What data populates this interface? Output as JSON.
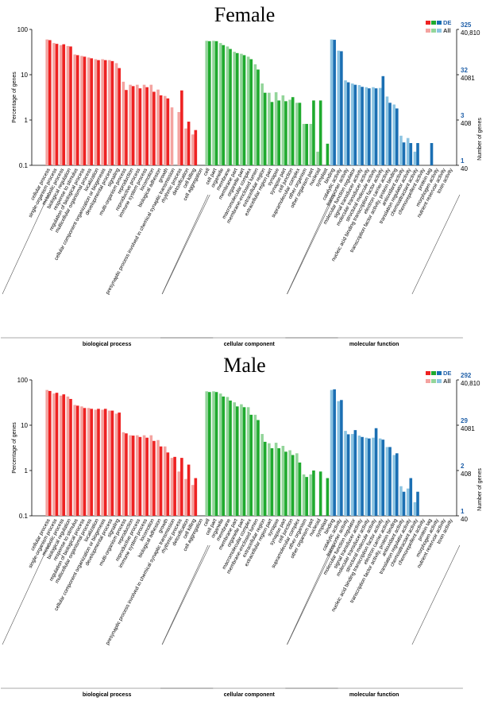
{
  "colors": {
    "bp_de": "#ee2222",
    "bp_all": "#f4a3a0",
    "cc_de": "#1faa2e",
    "cc_all": "#93d59a",
    "mf_de": "#1b6fb3",
    "mf_all": "#8cc4e2",
    "legend_de_text": "#1f5fa8"
  },
  "legend": {
    "de_label": "DE",
    "all_label": "All"
  },
  "categories": [
    "cellular process",
    "single-organism process",
    "metabolic process",
    "biological regulation",
    "response to stimulus",
    "regulation of biological process",
    "multicellular organismal process",
    "localization",
    "cellular component organization or biogenesis",
    "developmental process",
    "signaling",
    "multi-organism process",
    "reproduction",
    "reproductive process",
    "immune system process",
    "locomotion",
    "biological adhesion",
    "growth",
    "presynaptic process involved in chemical synaptic transmission",
    "rhythmic process",
    "detoxification",
    "cell killing",
    "cell aggregation",
    "cell",
    "cell part",
    "organelle",
    "membrane",
    "membrane part",
    "organelle part",
    "macromolecular complex",
    "membrane-enclosed lumen",
    "extracellular region",
    "extracellular region part",
    "synapse",
    "synapse part",
    "cell junction",
    "supramolecular complex",
    "other organism",
    "other organism part",
    "nucleoid",
    "symplast",
    "binding",
    "catalytic activity",
    "transporter activity",
    "molecular function regulator",
    "signal transducer activity",
    "molecular transducer activity",
    "structural molecule activity",
    "nucleic acid binding transcription factor activity",
    "electron carrier activity",
    "transcription factor activity, protein binding",
    "antioxidant activity",
    "translation regulator activity",
    "chemoattractant activity",
    "chemorepellent activity",
    "protein tag",
    "morphogen activity",
    "nutrient reservoir activity",
    "toxin activity"
  ],
  "groups": [
    {
      "name": "biological process",
      "start": 0,
      "count": 23
    },
    {
      "name": "cellular component",
      "start": 23,
      "count": 18
    },
    {
      "name": "molecular function",
      "start": 41,
      "count": 18
    }
  ],
  "chart_data": [
    {
      "type": "bar",
      "title": "Female",
      "ylabel": "Percentage of genes",
      "y2label": "Number of genes",
      "yscale": "log",
      "ylim": [
        0.1,
        100
      ],
      "yticks": [
        "100",
        "10",
        "1",
        "0.1"
      ],
      "right_ticks": [
        {
          "de": "325",
          "all": "40,810"
        },
        {
          "de": "32",
          "all": "4081"
        },
        {
          "de": "3",
          "all": "408"
        },
        {
          "de": "1",
          "all": "40"
        }
      ],
      "series": [
        {
          "name": "DE",
          "values": [
            58,
            48,
            47,
            42,
            27,
            25,
            23,
            21,
            21,
            20,
            14,
            4.6,
            5.6,
            5.0,
            5.3,
            4.2,
            3.5,
            3.0,
            null,
            4.5,
            0.92,
            0.6,
            null,
            55,
            55,
            45,
            37,
            30,
            27,
            22,
            13,
            4.0,
            2.5,
            2.7,
            2.6,
            3.2,
            2.4,
            0.82,
            2.7,
            2.7,
            0.3,
            59,
            33,
            6.8,
            6.0,
            5.4,
            5.0,
            5.0,
            9.3,
            2.4,
            1.8,
            0.32,
            0.31,
            0.31,
            null,
            0.31,
            null,
            null,
            null
          ]
        },
        {
          "name": "All",
          "values": [
            60,
            50,
            45,
            43,
            28,
            26,
            24,
            22,
            22,
            21,
            18,
            7,
            6,
            6,
            6,
            6,
            4.7,
            3.4,
            1.9,
            1.5,
            0.65,
            0.48,
            null,
            56,
            56,
            50,
            42,
            32,
            29,
            25,
            17,
            6.4,
            4.0,
            4.1,
            3.5,
            2.8,
            2.4,
            0.82,
            0.82,
            0.2,
            null,
            60,
            34,
            7.5,
            6.4,
            5.9,
            5.3,
            5.3,
            5.1,
            3.3,
            2.2,
            0.45,
            0.4,
            0.2,
            null,
            null,
            null,
            null,
            null
          ]
        }
      ]
    },
    {
      "type": "bar",
      "title": "Male",
      "ylabel": "Percentage of genes",
      "y2label": "Number of genes",
      "yscale": "log",
      "ylim": [
        0.1,
        100
      ],
      "yticks": [
        "100",
        "10",
        "1",
        "0.1"
      ],
      "right_ticks": [
        {
          "de": "292",
          "all": "40,810"
        },
        {
          "de": "29",
          "all": "4081"
        },
        {
          "de": "2",
          "all": "408"
        },
        {
          "de": "1",
          "all": "40"
        }
      ],
      "series": [
        {
          "name": "DE",
          "values": [
            57,
            52,
            48,
            38,
            27,
            24,
            23,
            23,
            23,
            21,
            19,
            6.6,
            5.9,
            5.5,
            5.3,
            4.5,
            3.4,
            2.5,
            2.0,
            1.9,
            1.35,
            0.68,
            null,
            54,
            54,
            43,
            35,
            26,
            25,
            17,
            13,
            4.3,
            3.1,
            3.1,
            2.6,
            2.2,
            1.5,
            0.72,
            1.0,
            0.95,
            0.68,
            62,
            36,
            6.3,
            7.8,
            5.5,
            5.1,
            8.6,
            4.8,
            3.3,
            2.4,
            0.34,
            0.68,
            0.34,
            null,
            null,
            null,
            null,
            null
          ]
        },
        {
          "name": "All",
          "values": [
            60,
            50,
            45,
            43,
            28,
            26,
            24,
            22,
            22,
            21,
            18,
            7,
            6,
            6,
            6,
            6,
            4.7,
            3.4,
            1.9,
            0.95,
            0.65,
            0.48,
            null,
            56,
            56,
            50,
            42,
            32,
            29,
            25,
            17,
            6.4,
            4.0,
            4.1,
            3.5,
            2.8,
            2.4,
            0.82,
            0.82,
            null,
            null,
            60,
            34,
            7.5,
            6.4,
            5.9,
            5.3,
            5.3,
            5.1,
            3.3,
            2.2,
            0.45,
            0.4,
            0.2,
            null,
            null,
            null,
            null,
            null
          ]
        }
      ]
    }
  ]
}
